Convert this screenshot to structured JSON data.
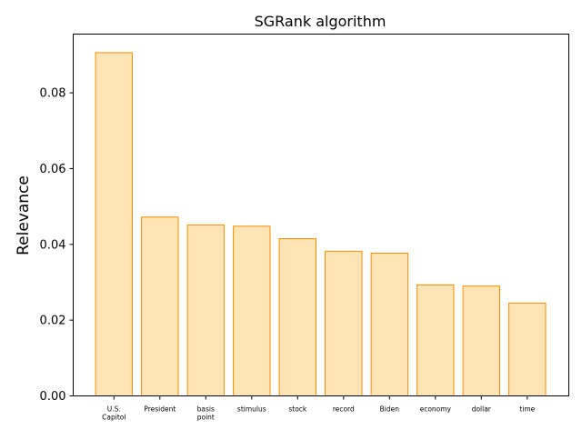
{
  "chart_data": {
    "type": "bar",
    "title": "SGRank algorithm",
    "xlabel": "",
    "ylabel": "Relevance",
    "categories": [
      "U.S.\nCapitol",
      "President",
      "basis\npoint",
      "stimulus",
      "stock",
      "record",
      "Biden",
      "economy",
      "dollar",
      "time"
    ],
    "values": [
      0.0906,
      0.0472,
      0.0451,
      0.0448,
      0.0415,
      0.0382,
      0.0377,
      0.0293,
      0.029,
      0.0245
    ],
    "ylim": [
      0,
      0.0955
    ],
    "yticks": [
      "0.00",
      "0.02",
      "0.04",
      "0.06",
      "0.08"
    ],
    "ytick_values": [
      0,
      0.02,
      0.04,
      0.06,
      0.08
    ],
    "grid": false,
    "legend": "none",
    "colors": {
      "bar_fill": "#ffe4b5",
      "bar_edge": "#ff8c00",
      "axes": "#000000",
      "background": "#ffffff"
    }
  }
}
